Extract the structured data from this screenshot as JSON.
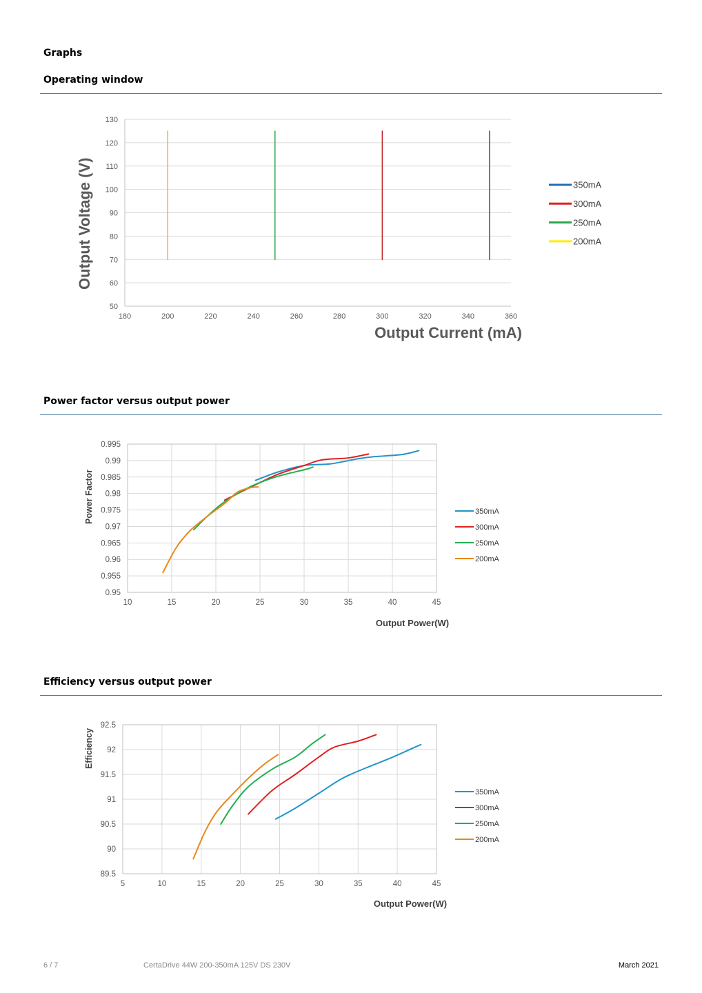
{
  "headings": {
    "graphs": "Graphs",
    "operating_window": "Operating window",
    "pf": "Power factor versus output power",
    "eff": "Efficiency versus output power"
  },
  "footer": {
    "page": "6 / 7",
    "product": "CertaDrive 44W 200-350mA 125V DS 230V",
    "date": "March 2021"
  },
  "chart_data": [
    {
      "id": "operating-window",
      "type": "line",
      "xlabel": "Output Current (mA)",
      "ylabel": "Output Voltage (V)",
      "xlim": [
        180,
        360
      ],
      "ylim": [
        50,
        130
      ],
      "xticks": [
        "180",
        "200",
        "220",
        "240",
        "260",
        "280",
        "300",
        "320",
        "340",
        "360"
      ],
      "yticks": [
        "50",
        "60",
        "70",
        "80",
        "90",
        "100",
        "110",
        "120",
        "130"
      ],
      "grid": "horizontal",
      "legend_position": "right",
      "series": [
        {
          "name": "350mA",
          "color": "#2e5e8f",
          "legend_color": "#1f6fb5",
          "points": [
            [
              350,
              70
            ],
            [
              350,
              125
            ]
          ]
        },
        {
          "name": "300mA",
          "color": "#c0282d",
          "legend_color": "#e02020",
          "points": [
            [
              300,
              70
            ],
            [
              300,
              125
            ]
          ]
        },
        {
          "name": "250mA",
          "color": "#2aa84a",
          "legend_color": "#2aa84a",
          "points": [
            [
              250,
              70
            ],
            [
              250,
              125
            ]
          ]
        },
        {
          "name": "200mA",
          "color": "#f3b21b",
          "legend_color": "#ffee00",
          "points": [
            [
              200,
              70
            ],
            [
              200,
              125
            ]
          ]
        }
      ]
    },
    {
      "id": "power-factor",
      "type": "line",
      "xlabel": "Output Power(W)",
      "ylabel": "Power Factor",
      "xlim": [
        10,
        45
      ],
      "ylim": [
        0.95,
        0.995
      ],
      "xticks": [
        "10",
        "15",
        "20",
        "25",
        "30",
        "35",
        "40",
        "45"
      ],
      "yticks": [
        "0.95",
        "0.955",
        "0.96",
        "0.965",
        "0.97",
        "0.975",
        "0.98",
        "0.985",
        "0.99",
        "0.995"
      ],
      "grid": "both",
      "legend_position": "right",
      "series": [
        {
          "name": "350mA",
          "color": "#2394c8",
          "points": [
            [
              24.5,
              0.984
            ],
            [
              27,
              0.9865
            ],
            [
              30,
              0.9885
            ],
            [
              33,
              0.989
            ],
            [
              36,
              0.9905
            ],
            [
              38,
              0.9912
            ],
            [
              41,
              0.9918
            ],
            [
              43,
              0.993
            ]
          ]
        },
        {
          "name": "300mA",
          "color": "#e02020",
          "points": [
            [
              21,
              0.978
            ],
            [
              24,
              0.982
            ],
            [
              27,
              0.9858
            ],
            [
              30,
              0.9885
            ],
            [
              32,
              0.9902
            ],
            [
              35,
              0.9908
            ],
            [
              37.3,
              0.992
            ]
          ]
        },
        {
          "name": "250mA",
          "color": "#23ae50",
          "points": [
            [
              17.5,
              0.969
            ],
            [
              19,
              0.973
            ],
            [
              21,
              0.9775
            ],
            [
              24,
              0.9822
            ],
            [
              27,
              0.9852
            ],
            [
              30,
              0.9872
            ],
            [
              31,
              0.988
            ]
          ]
        },
        {
          "name": "200mA",
          "color": "#e48a1c",
          "points": [
            [
              14,
              0.956
            ],
            [
              15.5,
              0.9635
            ],
            [
              17,
              0.9685
            ],
            [
              19,
              0.973
            ],
            [
              21,
              0.977
            ],
            [
              22.5,
              0.9805
            ],
            [
              24,
              0.9818
            ],
            [
              24.8,
              0.982
            ]
          ]
        }
      ]
    },
    {
      "id": "efficiency",
      "type": "line",
      "xlabel": "Output Power(W)",
      "ylabel": "Efficiency",
      "xlim": [
        5,
        45
      ],
      "ylim": [
        89.5,
        92.5
      ],
      "xticks": [
        "5",
        "10",
        "15",
        "20",
        "25",
        "30",
        "35",
        "40",
        "45"
      ],
      "yticks": [
        "89.5",
        "90",
        "90.5",
        "91",
        "91.5",
        "92",
        "92.5"
      ],
      "grid": "both",
      "legend_position": "right",
      "series": [
        {
          "name": "350mA",
          "color": "#2394c8",
          "points": [
            [
              24.5,
              90.6
            ],
            [
              27,
              90.82
            ],
            [
              30,
              91.12
            ],
            [
              33,
              91.42
            ],
            [
              36,
              91.63
            ],
            [
              39,
              91.82
            ],
            [
              42,
              92.03
            ],
            [
              43,
              92.1
            ]
          ]
        },
        {
          "name": "300mA",
          "color": "#e02020",
          "points": [
            [
              21,
              90.7
            ],
            [
              24,
              91.17
            ],
            [
              27,
              91.5
            ],
            [
              30,
              91.85
            ],
            [
              32,
              92.05
            ],
            [
              35,
              92.17
            ],
            [
              37.3,
              92.3
            ]
          ]
        },
        {
          "name": "250mA",
          "color": "#23ae50",
          "points": [
            [
              17.5,
              90.5
            ],
            [
              19,
              90.87
            ],
            [
              21,
              91.25
            ],
            [
              24,
              91.6
            ],
            [
              27,
              91.85
            ],
            [
              29,
              92.1
            ],
            [
              30.8,
              92.3
            ]
          ]
        },
        {
          "name": "200mA",
          "color": "#e48a1c",
          "points": [
            [
              14,
              89.8
            ],
            [
              15.5,
              90.35
            ],
            [
              17,
              90.75
            ],
            [
              19,
              91.1
            ],
            [
              21,
              91.42
            ],
            [
              23,
              91.7
            ],
            [
              24.8,
              91.9
            ]
          ]
        }
      ]
    }
  ]
}
